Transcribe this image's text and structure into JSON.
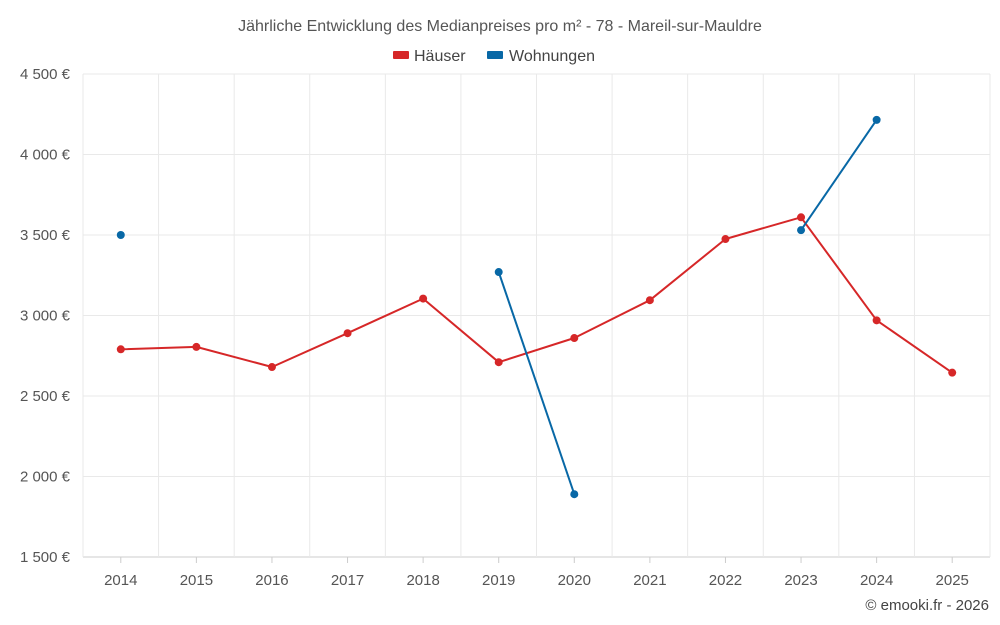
{
  "chart_data": {
    "type": "line",
    "title": "Jährliche Entwicklung des Medianpreises pro m² - 78 - Mareil-sur-Mauldre",
    "categories": [
      "2014",
      "2015",
      "2016",
      "2017",
      "2018",
      "2019",
      "2020",
      "2021",
      "2022",
      "2023",
      "2024",
      "2025"
    ],
    "ylim": [
      1500,
      4500
    ],
    "yticks": [
      1500,
      2000,
      2500,
      3000,
      3500,
      4000,
      4500
    ],
    "ytick_labels": [
      "1 500 €",
      "2 000 €",
      "2 500 €",
      "3 000 €",
      "3 500 €",
      "4 000 €",
      "4 500 €"
    ],
    "xlabel": "",
    "ylabel": "",
    "grid": true,
    "legend_position": "top-center",
    "series": [
      {
        "name": "Häuser",
        "color": "#d62728",
        "values": [
          2790,
          2805,
          2680,
          2890,
          3105,
          2710,
          2860,
          3095,
          3475,
          3610,
          2970,
          2645
        ]
      },
      {
        "name": "Wohnungen",
        "color": "#0868a6",
        "values": [
          3500,
          null,
          null,
          null,
          null,
          3270,
          1890,
          null,
          null,
          3530,
          4215,
          null
        ]
      }
    ]
  },
  "credit": "© emooki.fr - 2026"
}
